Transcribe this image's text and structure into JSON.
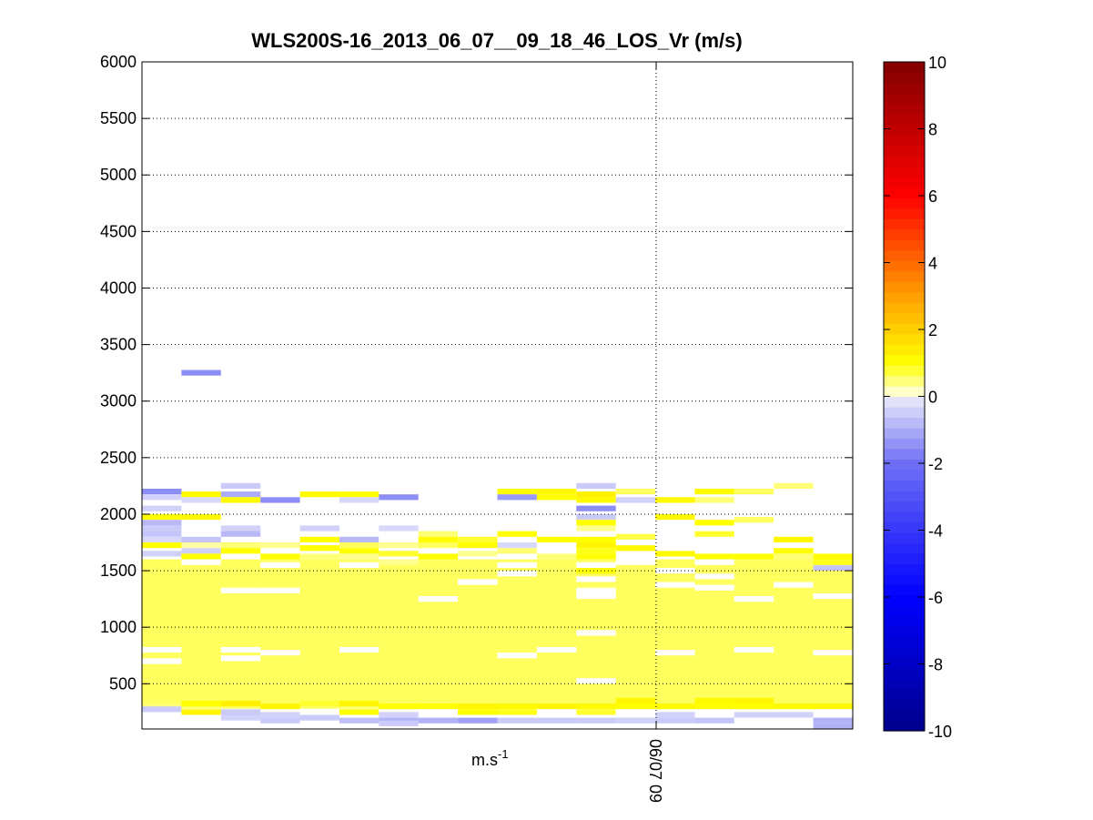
{
  "chart_data": {
    "type": "heatmap",
    "title": "WLS200S-16_2013_06_07__09_18_46_LOS_Vr (m/s)",
    "xlabel": "m.s-1",
    "ylabel": "",
    "xtick_label": "06/07 09",
    "ylim": [
      100,
      6000
    ],
    "yticks": [
      500,
      1000,
      1500,
      2000,
      2500,
      3000,
      3500,
      4000,
      4500,
      5000,
      5500,
      6000
    ],
    "grid": true,
    "colorbar": {
      "range": [
        -10,
        10
      ],
      "ticks": [
        -10,
        -8,
        -6,
        -4,
        -2,
        0,
        2,
        4,
        6,
        8,
        10
      ]
    },
    "columns": 18,
    "altitude_step": 50,
    "background_value": 0.6,
    "background_top": 1600,
    "background_bottom": 280,
    "cells": [
      [
        0,
        2200,
        -1.5
      ],
      [
        0,
        2150,
        -0.4
      ],
      [
        0,
        2050,
        -0.4
      ],
      [
        0,
        1975,
        1.0
      ],
      [
        0,
        1925,
        -0.8
      ],
      [
        0,
        1875,
        -0.5
      ],
      [
        0,
        1825,
        -0.6
      ],
      [
        0,
        1775,
        -0.3
      ],
      [
        0,
        1725,
        1.0
      ],
      [
        0,
        1650,
        -0.4
      ],
      [
        0,
        800,
        0.0
      ],
      [
        0,
        700,
        0.0
      ],
      [
        0,
        300,
        0.5
      ],
      [
        0,
        275,
        -0.5
      ],
      [
        1,
        3250,
        -1.5
      ],
      [
        1,
        2175,
        1.1
      ],
      [
        1,
        2125,
        -0.3
      ],
      [
        1,
        1975,
        1.1
      ],
      [
        1,
        1775,
        -0.6
      ],
      [
        1,
        1725,
        0.3
      ],
      [
        1,
        1675,
        -0.4
      ],
      [
        1,
        1625,
        1.0
      ],
      [
        1,
        1575,
        0.0
      ],
      [
        1,
        325,
        1.0
      ],
      [
        1,
        250,
        1.2
      ],
      [
        2,
        2250,
        -0.5
      ],
      [
        2,
        2175,
        -1.0
      ],
      [
        2,
        2125,
        1.1
      ],
      [
        2,
        1875,
        -0.4
      ],
      [
        2,
        1825,
        -0.8
      ],
      [
        2,
        1725,
        0.5
      ],
      [
        2,
        1675,
        1.0
      ],
      [
        2,
        1575,
        0.6
      ],
      [
        2,
        1325,
        0.0
      ],
      [
        2,
        800,
        0.0
      ],
      [
        2,
        725,
        0.0
      ],
      [
        2,
        325,
        1.3
      ],
      [
        2,
        250,
        -0.5
      ],
      [
        2,
        200,
        -0.4
      ],
      [
        3,
        2125,
        -1.5
      ],
      [
        3,
        1775,
        0.0
      ],
      [
        3,
        1725,
        0.4
      ],
      [
        3,
        1625,
        1.0
      ],
      [
        3,
        1550,
        0.0
      ],
      [
        3,
        1325,
        0.0
      ],
      [
        3,
        775,
        0.0
      ],
      [
        3,
        300,
        1.2
      ],
      [
        3,
        225,
        -0.4
      ],
      [
        3,
        175,
        -0.5
      ],
      [
        4,
        2175,
        1.1
      ],
      [
        4,
        1875,
        -0.4
      ],
      [
        4,
        1775,
        1.0
      ],
      [
        4,
        1700,
        1.0
      ],
      [
        4,
        1625,
        0.5
      ],
      [
        4,
        325,
        0.8
      ],
      [
        4,
        200,
        -0.5
      ],
      [
        5,
        2175,
        1.0
      ],
      [
        5,
        2125,
        -0.3
      ],
      [
        5,
        1775,
        -0.8
      ],
      [
        5,
        1725,
        0.6
      ],
      [
        5,
        1675,
        1.0
      ],
      [
        5,
        1625,
        0.4
      ],
      [
        5,
        1550,
        0.0
      ],
      [
        5,
        800,
        0.0
      ],
      [
        5,
        325,
        1.2
      ],
      [
        5,
        250,
        1.0
      ],
      [
        5,
        175,
        -0.7
      ],
      [
        6,
        2150,
        -1.5
      ],
      [
        6,
        1875,
        -0.3
      ],
      [
        6,
        1775,
        0.0
      ],
      [
        6,
        1725,
        0.4
      ],
      [
        6,
        1650,
        0.8
      ],
      [
        6,
        1575,
        0.4
      ],
      [
        6,
        300,
        1.0
      ],
      [
        6,
        225,
        -0.4
      ],
      [
        6,
        175,
        -0.9
      ],
      [
        6,
        150,
        -0.5
      ],
      [
        7,
        1825,
        0.5
      ],
      [
        7,
        1775,
        1.0
      ],
      [
        7,
        1725,
        0.6
      ],
      [
        7,
        1625,
        1.0
      ],
      [
        7,
        1250,
        0.0
      ],
      [
        7,
        300,
        1.0
      ],
      [
        7,
        175,
        -0.9
      ],
      [
        8,
        1775,
        0.8
      ],
      [
        8,
        1725,
        1.0
      ],
      [
        8,
        1650,
        0.4
      ],
      [
        8,
        1400,
        0.0
      ],
      [
        8,
        300,
        1.2
      ],
      [
        8,
        250,
        1.0
      ],
      [
        8,
        175,
        -1.2
      ],
      [
        9,
        2200,
        1.0
      ],
      [
        9,
        2150,
        -1.3
      ],
      [
        9,
        1825,
        1.0
      ],
      [
        9,
        1725,
        -0.3
      ],
      [
        9,
        1675,
        0.5
      ],
      [
        9,
        1550,
        0.0
      ],
      [
        9,
        1475,
        0.0
      ],
      [
        9,
        750,
        0.0
      ],
      [
        9,
        300,
        1.1
      ],
      [
        9,
        250,
        0.9
      ],
      [
        9,
        175,
        -0.5
      ],
      [
        10,
        2200,
        1.1
      ],
      [
        10,
        2150,
        1.0
      ],
      [
        10,
        1775,
        1.0
      ],
      [
        10,
        1675,
        0.0
      ],
      [
        10,
        1625,
        0.5
      ],
      [
        10,
        800,
        0.0
      ],
      [
        10,
        300,
        1.2
      ],
      [
        10,
        175,
        -0.5
      ],
      [
        11,
        2250,
        -0.5
      ],
      [
        11,
        2175,
        1.3
      ],
      [
        11,
        2125,
        1.1
      ],
      [
        11,
        2050,
        -1.5
      ],
      [
        11,
        1975,
        -0.5
      ],
      [
        11,
        1925,
        1.0
      ],
      [
        11,
        1875,
        0.4
      ],
      [
        11,
        1775,
        1.0
      ],
      [
        11,
        1725,
        1.2
      ],
      [
        11,
        1675,
        0.9
      ],
      [
        11,
        1625,
        1.0
      ],
      [
        11,
        1550,
        0.0
      ],
      [
        11,
        1500,
        1.0
      ],
      [
        11,
        1425,
        0.0
      ],
      [
        11,
        1325,
        0.0
      ],
      [
        11,
        1275,
        0.0
      ],
      [
        11,
        950,
        0.0
      ],
      [
        11,
        525,
        0.0
      ],
      [
        11,
        300,
        1.1
      ],
      [
        11,
        250,
        0.8
      ],
      [
        11,
        175,
        -0.5
      ],
      [
        12,
        2200,
        0.6
      ],
      [
        12,
        2125,
        -0.4
      ],
      [
        12,
        1800,
        0.7
      ],
      [
        12,
        1700,
        1.1
      ],
      [
        12,
        1575,
        0.0
      ],
      [
        12,
        350,
        1.2
      ],
      [
        12,
        300,
        1.0
      ],
      [
        12,
        175,
        -0.4
      ],
      [
        13,
        2125,
        1.1
      ],
      [
        13,
        1975,
        1.1
      ],
      [
        13,
        1725,
        0.0
      ],
      [
        13,
        1650,
        1.1
      ],
      [
        13,
        1500,
        0.0
      ],
      [
        13,
        1375,
        0.0
      ],
      [
        13,
        775,
        0.0
      ],
      [
        13,
        300,
        1.1
      ],
      [
        13,
        225,
        -0.4
      ],
      [
        13,
        175,
        -0.5
      ],
      [
        14,
        2200,
        1.1
      ],
      [
        14,
        2125,
        0.5
      ],
      [
        14,
        1925,
        1.0
      ],
      [
        14,
        1875,
        0.0
      ],
      [
        14,
        1825,
        0.8
      ],
      [
        14,
        1700,
        0.0
      ],
      [
        14,
        1625,
        1.0
      ],
      [
        14,
        1575,
        0.0
      ],
      [
        14,
        1450,
        0.0
      ],
      [
        14,
        1350,
        0.0
      ],
      [
        14,
        350,
        1.1
      ],
      [
        14,
        300,
        1.0
      ],
      [
        14,
        175,
        -0.6
      ],
      [
        15,
        2200,
        0.6
      ],
      [
        15,
        1950,
        0.6
      ],
      [
        15,
        1675,
        0.0
      ],
      [
        15,
        1625,
        1.0
      ],
      [
        15,
        1250,
        0.0
      ],
      [
        15,
        800,
        0.0
      ],
      [
        15,
        350,
        1.2
      ],
      [
        15,
        300,
        1.0
      ],
      [
        15,
        225,
        -0.4
      ],
      [
        16,
        2250,
        0.5
      ],
      [
        16,
        1775,
        1.2
      ],
      [
        16,
        1675,
        1.0
      ],
      [
        16,
        1625,
        0.5
      ],
      [
        16,
        1375,
        0.0
      ],
      [
        16,
        300,
        1.1
      ],
      [
        16,
        225,
        -0.4
      ],
      [
        17,
        1625,
        1.0
      ],
      [
        17,
        1575,
        0.9
      ],
      [
        17,
        1525,
        -0.6
      ],
      [
        17,
        1275,
        0.0
      ],
      [
        17,
        775,
        0.0
      ],
      [
        17,
        300,
        1.1
      ],
      [
        17,
        175,
        -0.9
      ],
      [
        17,
        125,
        -0.9
      ]
    ]
  }
}
